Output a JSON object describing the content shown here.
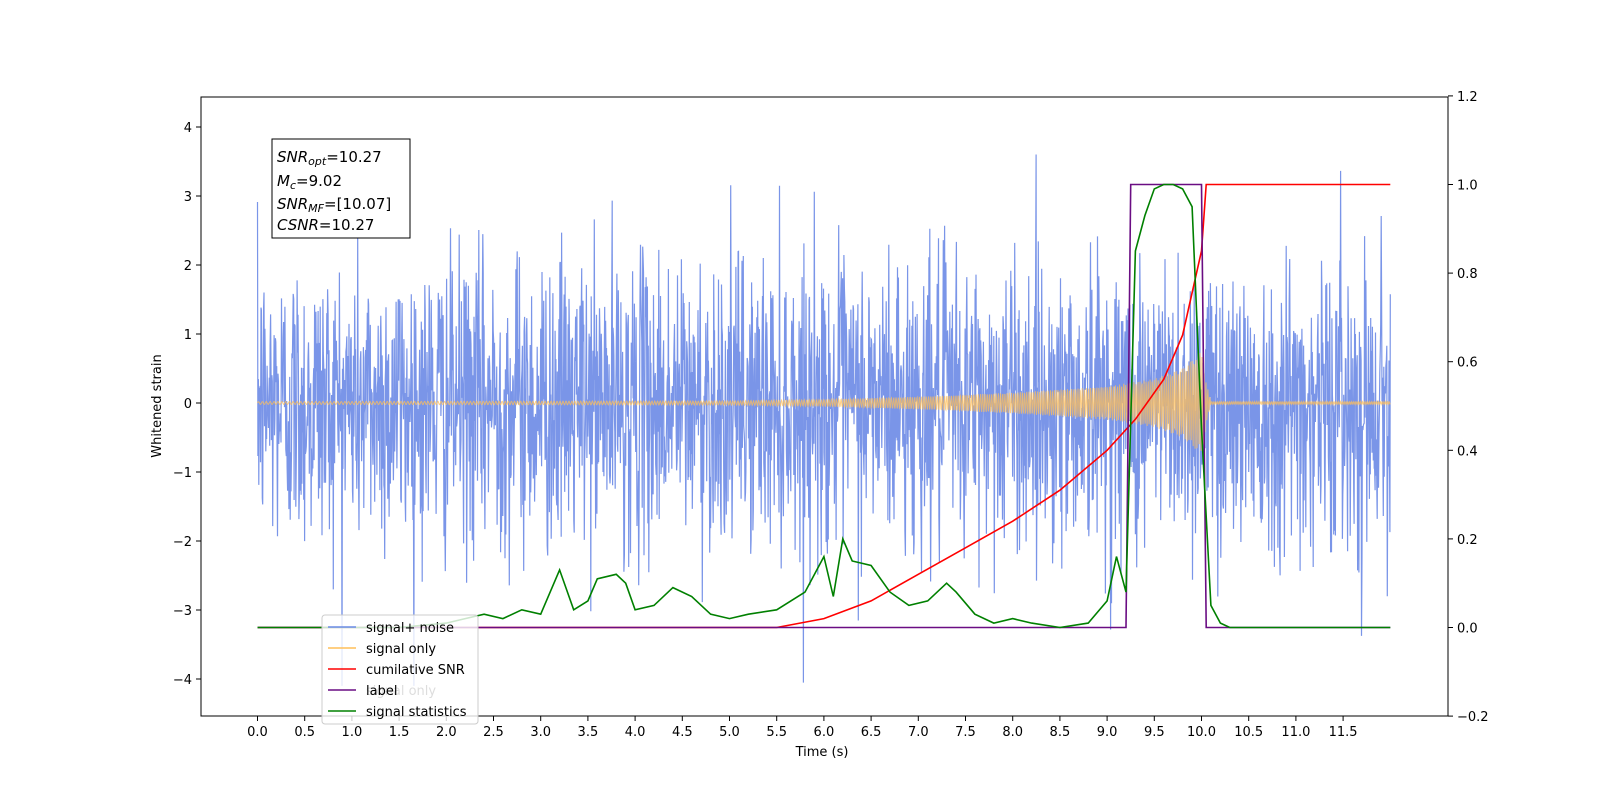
{
  "chart_data": {
    "type": "line",
    "xlabel": "Time (s)",
    "ylabel": "Whitened strain",
    "xlim": [
      -0.6,
      12.6
    ],
    "ylim": [
      -4.55,
      4.4
    ],
    "ylim_right": [
      -0.2,
      1.2
    ],
    "x_ticks": [
      "0.0",
      "0.5",
      "1.0",
      "1.5",
      "2.0",
      "2.5",
      "3.0",
      "3.5",
      "4.0",
      "4.5",
      "5.0",
      "5.5",
      "6.0",
      "6.5",
      "7.0",
      "7.5",
      "8.0",
      "8.5",
      "9.0",
      "9.5",
      "10.0",
      "10.5",
      "11.0",
      "11.5"
    ],
    "y_ticks_left": [
      "4",
      "3",
      "2",
      "1",
      "0",
      "−1",
      "−2",
      "−3",
      "−4"
    ],
    "y_ticks_right": [
      "1.2",
      "1.0",
      "0.8",
      "0.6",
      "0.4",
      "0.2",
      "0.0",
      "−0.2"
    ],
    "annotation": {
      "snr_opt_sym": "SNR",
      "snr_opt_sub": "opt",
      "snr_opt_val": "=10.27",
      "mc_sym": "M",
      "mc_sub": "c",
      "mc_val": "=9.02",
      "snr_mf_sym": "SNR",
      "snr_mf_sub": "MF",
      "snr_mf_val": "=[10.07]",
      "csnr_sym": "CSNR",
      "csnr_val": "=10.27"
    },
    "legend_placement": "lower-left",
    "legend": [
      {
        "label": "signal+ noise",
        "color": "#6b8ae5"
      },
      {
        "label": "signal only",
        "color": "#ffbf59"
      },
      {
        "label": "cumilative SNR",
        "color": "#ff0000"
      },
      {
        "label": "label",
        "color": "#6a0d83"
      },
      {
        "label": "signal statistics",
        "color": "#008000"
      }
    ],
    "hidden_legend_text": "signal only",
    "series": [
      {
        "name": "signal+ noise",
        "axis": "left",
        "description": "whitened strain noise, roughly Gaussian with std ~1.1",
        "x_range": [
          0,
          12.0
        ],
        "typical_range": [
          -2.5,
          2.5
        ],
        "extremes": [
          -4.1,
          4.0
        ]
      },
      {
        "name": "signal only",
        "axis": "left",
        "description": "chirp waveform growing in amplitude until merger",
        "envelope": {
          "t": [
            0,
            5,
            6,
            7,
            8,
            9,
            9.5,
            9.8,
            10.0,
            10.05,
            10.1,
            12.0
          ],
          "amp": [
            0.02,
            0.03,
            0.05,
            0.09,
            0.15,
            0.24,
            0.35,
            0.5,
            0.75,
            0.3,
            0.02,
            0.02
          ]
        }
      },
      {
        "name": "cumilative SNR",
        "axis": "right",
        "x": [
          0,
          5.5,
          6.0,
          6.5,
          7.0,
          7.5,
          8.0,
          8.5,
          9.0,
          9.3,
          9.6,
          9.8,
          10.0,
          10.05,
          12.0
        ],
        "y": [
          0,
          0.0,
          0.02,
          0.06,
          0.12,
          0.18,
          0.24,
          0.31,
          0.4,
          0.47,
          0.56,
          0.66,
          0.85,
          1.0,
          1.0
        ]
      },
      {
        "name": "label",
        "axis": "right",
        "x": [
          0,
          9.2,
          9.25,
          10.0,
          10.05,
          12.0
        ],
        "y": [
          0,
          0,
          1,
          1,
          0,
          0
        ]
      },
      {
        "name": "signal statistics",
        "axis": "right",
        "x": [
          0,
          1.5,
          2.0,
          2.2,
          2.4,
          2.6,
          2.8,
          3.0,
          3.2,
          3.35,
          3.5,
          3.6,
          3.8,
          3.9,
          4.0,
          4.2,
          4.4,
          4.6,
          4.8,
          5.0,
          5.2,
          5.5,
          5.8,
          6.0,
          6.1,
          6.2,
          6.3,
          6.5,
          6.7,
          6.9,
          7.1,
          7.3,
          7.4,
          7.6,
          7.8,
          8.0,
          8.2,
          8.5,
          8.8,
          9.0,
          9.1,
          9.2,
          9.3,
          9.4,
          9.5,
          9.6,
          9.7,
          9.8,
          9.9,
          10.0,
          10.1,
          10.2,
          10.3,
          11.0,
          12.0
        ],
        "y": [
          0.0,
          0.0,
          0.01,
          0.02,
          0.03,
          0.02,
          0.04,
          0.03,
          0.13,
          0.04,
          0.06,
          0.11,
          0.12,
          0.1,
          0.04,
          0.05,
          0.09,
          0.07,
          0.03,
          0.02,
          0.03,
          0.04,
          0.08,
          0.16,
          0.07,
          0.2,
          0.15,
          0.14,
          0.08,
          0.05,
          0.06,
          0.1,
          0.08,
          0.03,
          0.01,
          0.02,
          0.01,
          0.0,
          0.01,
          0.06,
          0.16,
          0.08,
          0.85,
          0.93,
          0.99,
          1.0,
          1.0,
          0.99,
          0.95,
          0.45,
          0.05,
          0.01,
          0.0,
          0.0,
          0.0
        ]
      }
    ]
  }
}
